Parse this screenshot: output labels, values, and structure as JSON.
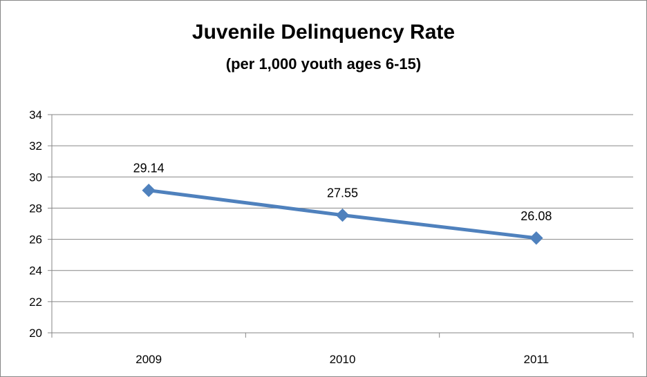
{
  "chart_data": {
    "type": "line",
    "title": "Juvenile Delinquency Rate",
    "subtitle": "(per 1,000 youth ages 6-15)",
    "categories": [
      "2009",
      "2010",
      "2011"
    ],
    "series": [
      {
        "values": [
          29.14,
          27.55,
          26.08
        ],
        "labels": [
          "29.14",
          "27.55",
          "26.08"
        ],
        "color": "#4F81BD"
      }
    ],
    "xlabel": "",
    "ylabel": "",
    "ylim": [
      20,
      34
    ],
    "yticks": [
      20,
      22,
      24,
      26,
      28,
      30,
      32,
      34
    ],
    "grid": true,
    "legend": "none",
    "marker": "diamond"
  }
}
